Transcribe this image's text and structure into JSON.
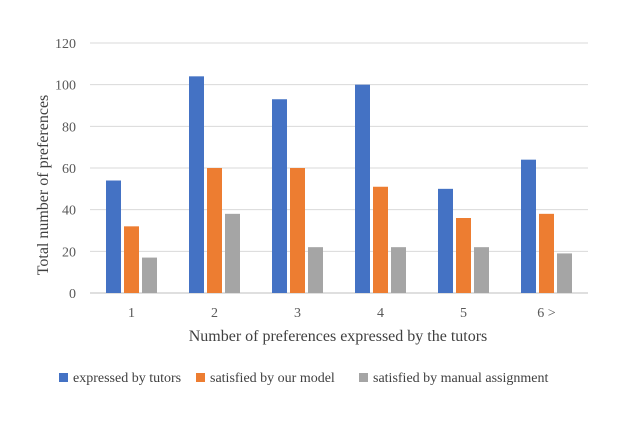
{
  "chart_data": {
    "type": "bar",
    "title": "",
    "xlabel": "Number of preferences expressed by the tutors",
    "ylabel": "Total number of preferences",
    "categories": [
      "1",
      "2",
      "3",
      "4",
      "5",
      "6 >"
    ],
    "ylim": [
      0,
      120
    ],
    "yticks": [
      0,
      20,
      40,
      60,
      80,
      100,
      120
    ],
    "grid": true,
    "legend_position": "bottom",
    "series": [
      {
        "name": "expressed by tutors",
        "color": "#4472C4",
        "values": [
          54,
          104,
          93,
          100,
          50,
          64
        ]
      },
      {
        "name": "satisfied by our model",
        "color": "#ED7D31",
        "values": [
          32,
          60,
          60,
          51,
          36,
          38
        ]
      },
      {
        "name": "satisfied by manual assignment",
        "color": "#A5A5A5",
        "values": [
          17,
          38,
          22,
          22,
          22,
          19
        ]
      }
    ]
  }
}
